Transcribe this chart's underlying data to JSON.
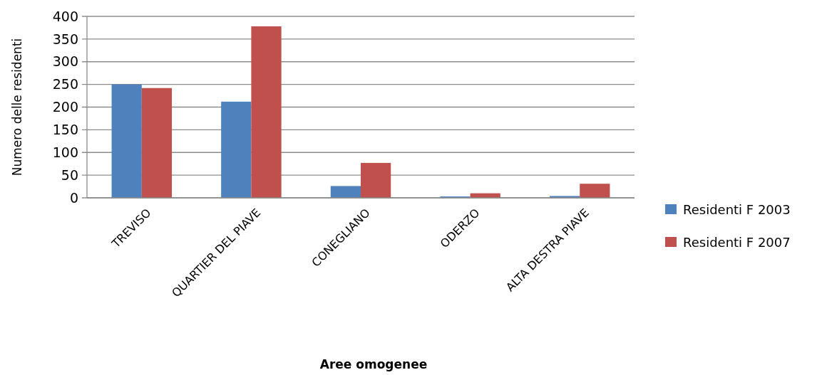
{
  "chart_data": {
    "type": "bar",
    "xlabel": "Aree omogenee",
    "ylabel": "Numero delle residenti",
    "categories": [
      "TREVISO",
      "QUARTIER DEL PIAVE",
      "CONEGLIANO",
      "ODERZO",
      "ALTA DESTRA PIAVE"
    ],
    "series": [
      {
        "name": "Residenti F 2003",
        "color": "#4f81bd",
        "values": [
          250,
          212,
          26,
          3,
          4
        ]
      },
      {
        "name": "Residenti F 2007",
        "color": "#c0504d",
        "values": [
          242,
          378,
          77,
          10,
          31
        ]
      }
    ],
    "ylim": [
      0,
      400
    ],
    "yticks": [
      0,
      50,
      100,
      150,
      200,
      250,
      300,
      350,
      400
    ],
    "grid": "y",
    "legend": "right"
  }
}
